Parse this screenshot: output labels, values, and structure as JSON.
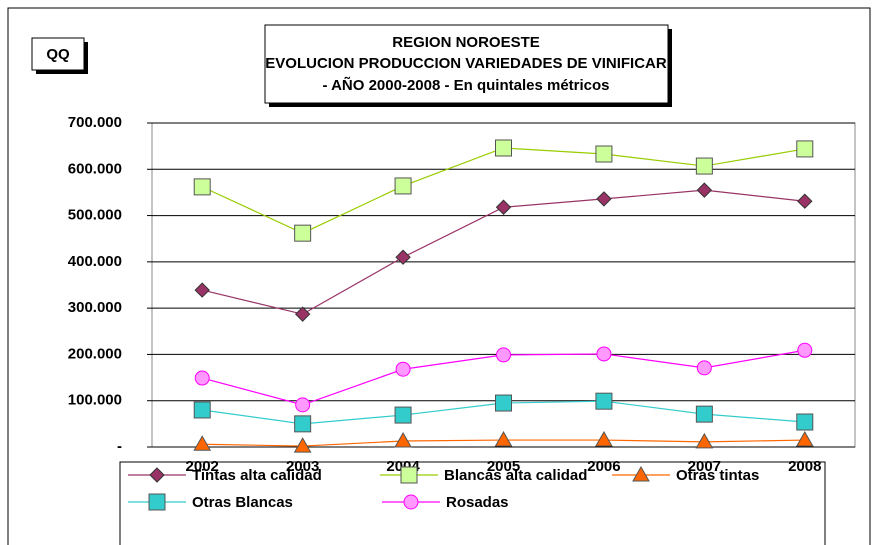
{
  "chart_data": {
    "type": "line",
    "title": "REGION NOROESTE",
    "subtitle": [
      "EVOLUCION PRODUCCION VARIEDADES DE VINIFICAR",
      "- AÑO 2000-2008 - En quintales métricos"
    ],
    "ylabel": "QQ",
    "categories": [
      "2002",
      "2003",
      "2004",
      "2005",
      "2006",
      "2007",
      "2008"
    ],
    "series": [
      {
        "name": "Tintas alta calidad",
        "color": "#993366",
        "marker": "diamond",
        "values": [
          339000,
          287000,
          410000,
          518000,
          536000,
          555000,
          531000
        ]
      },
      {
        "name": "Blancas alta calidad",
        "color": "#99cc00",
        "marker": "square",
        "values": [
          562000,
          462000,
          564000,
          646000,
          633000,
          607000,
          644000
        ]
      },
      {
        "name": "Otras tintas",
        "color": "#ff6600",
        "marker": "triangle",
        "values": [
          6000,
          2000,
          13000,
          15000,
          15000,
          11000,
          15000
        ]
      },
      {
        "name": "Otras Blancas",
        "color": "#33cccc",
        "marker": "square",
        "values": [
          80000,
          50000,
          69000,
          95000,
          99000,
          71000,
          54000
        ]
      },
      {
        "name": "Rosadas",
        "color": "#ff00ff",
        "marker": "circle",
        "values": [
          149000,
          91000,
          168000,
          199000,
          201000,
          171000,
          209000
        ]
      }
    ],
    "ylim": [
      0,
      700000
    ],
    "yticks": [
      {
        "value": 0,
        "label": "-"
      },
      {
        "value": 100000,
        "label": "100.000"
      },
      {
        "value": 200000,
        "label": "200.000"
      },
      {
        "value": 300000,
        "label": "300.000"
      },
      {
        "value": 400000,
        "label": "400.000"
      },
      {
        "value": 500000,
        "label": "500.000"
      },
      {
        "value": 600000,
        "label": "600.000"
      },
      {
        "value": 700000,
        "label": "700.000"
      }
    ],
    "grid": true
  }
}
